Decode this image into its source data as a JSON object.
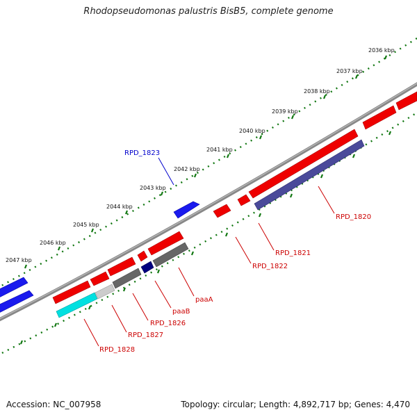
{
  "title": "Rhodopseudomonas palustris BisB5, complete genome",
  "footer": {
    "accession": "Accession: NC_007958",
    "stats": "Topology: circular; Length: 4,892,717 bp; Genes: 4,470"
  },
  "kbp_labels": [
    "2036 kbp",
    "2037 kbp",
    "2038 kbp",
    "2039 kbp",
    "2040 kbp",
    "2041 kbp",
    "2042 kbp",
    "2043 kbp",
    "2044 kbp",
    "2045 kbp",
    "2046 kbp",
    "2047 kbp"
  ],
  "genes": [
    "RPD_1823",
    "RPD_1820",
    "RPD_1821",
    "RPD_1822",
    "paaA",
    "paaB",
    "RPD_1826",
    "RPD_1827",
    "RPD_1828"
  ],
  "colors": {
    "forward_gene": "#ee0000",
    "reverse_gene": "#1a1aee",
    "label_red": "#cc0000",
    "label_blue": "#0000cc",
    "tick_green": "#117711",
    "backbone": "#888888"
  }
}
